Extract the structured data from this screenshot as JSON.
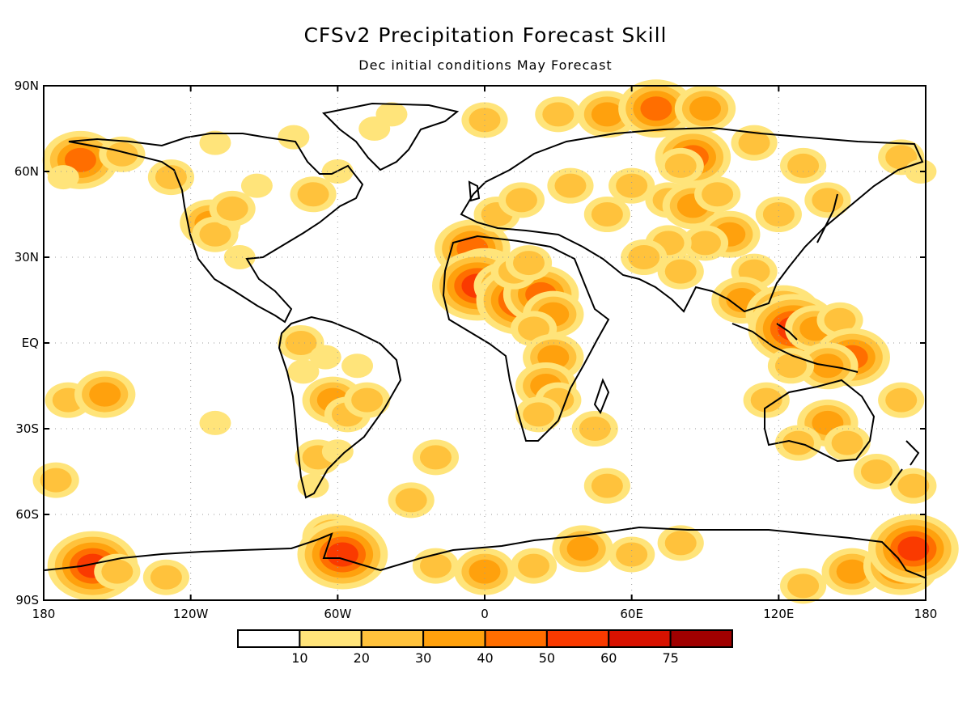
{
  "title": "CFSv2 Precipitation Forecast Skill",
  "subtitle": "Dec initial conditions   May Forecast",
  "map": {
    "projection": "equirectangular",
    "lon_range": [
      -180,
      180
    ],
    "lat_range": [
      -90,
      90
    ],
    "gridlines": "dotted",
    "lat_ticks": [
      {
        "value": 90,
        "label": "90N"
      },
      {
        "value": 60,
        "label": "60N"
      },
      {
        "value": 30,
        "label": "30N"
      },
      {
        "value": 0,
        "label": "EQ"
      },
      {
        "value": -30,
        "label": "30S"
      },
      {
        "value": -60,
        "label": "60S"
      },
      {
        "value": -90,
        "label": "90S"
      }
    ],
    "lon_ticks": [
      {
        "value": -180,
        "label": "180"
      },
      {
        "value": -120,
        "label": "120W"
      },
      {
        "value": -60,
        "label": "60W"
      },
      {
        "value": 0,
        "label": "0"
      },
      {
        "value": 60,
        "label": "60E"
      },
      {
        "value": 120,
        "label": "120E"
      },
      {
        "value": 180,
        "label": "180"
      }
    ]
  },
  "colorbar": {
    "colors": [
      "#ffffff",
      "#ffe47a",
      "#ffc23c",
      "#ffa10d",
      "#ff6e00",
      "#fa3a00",
      "#d81200",
      "#a00000"
    ],
    "labels": [
      "10",
      "20",
      "30",
      "40",
      "50",
      "60",
      "75"
    ]
  },
  "skill_regions": [
    {
      "lon": -168,
      "lat": 63,
      "level": 2
    },
    {
      "lon": -165,
      "lat": 64,
      "level": 4
    },
    {
      "lon": -148,
      "lat": 66,
      "level": 2
    },
    {
      "lon": -128,
      "lat": 58,
      "level": 2
    },
    {
      "lon": -112,
      "lat": 42,
      "level": 3
    },
    {
      "lon": -110,
      "lat": 38,
      "level": 2
    },
    {
      "lon": -103,
      "lat": 47,
      "level": 2
    },
    {
      "lon": -100,
      "lat": 30,
      "level": 1
    },
    {
      "lon": -93,
      "lat": 55,
      "level": 1
    },
    {
      "lon": -70,
      "lat": 52,
      "level": 2
    },
    {
      "lon": -60,
      "lat": 60,
      "level": 1
    },
    {
      "lon": -45,
      "lat": 75,
      "level": 1
    },
    {
      "lon": -38,
      "lat": 80,
      "level": 1
    },
    {
      "lon": -78,
      "lat": 72,
      "level": 1
    },
    {
      "lon": -110,
      "lat": 70,
      "level": 1
    },
    {
      "lon": -172,
      "lat": 58,
      "level": 1
    },
    {
      "lon": -75,
      "lat": 0,
      "level": 2
    },
    {
      "lon": -65,
      "lat": -5,
      "level": 1
    },
    {
      "lon": -52,
      "lat": -8,
      "level": 1
    },
    {
      "lon": -62,
      "lat": -20,
      "level": 3
    },
    {
      "lon": -56,
      "lat": -25,
      "level": 2
    },
    {
      "lon": -48,
      "lat": -20,
      "level": 2
    },
    {
      "lon": -68,
      "lat": -40,
      "level": 2
    },
    {
      "lon": -70,
      "lat": -50,
      "level": 1
    },
    {
      "lon": -74,
      "lat": -10,
      "level": 1
    },
    {
      "lon": -60,
      "lat": -38,
      "level": 1
    },
    {
      "lon": -5,
      "lat": 33,
      "level": 4
    },
    {
      "lon": 0,
      "lat": 23,
      "level": 4
    },
    {
      "lon": -3,
      "lat": 20,
      "level": 5
    },
    {
      "lon": 8,
      "lat": 20,
      "level": 3
    },
    {
      "lon": 15,
      "lat": 15,
      "level": 5
    },
    {
      "lon": 23,
      "lat": 17,
      "level": 4
    },
    {
      "lon": 12,
      "lat": 25,
      "level": 2
    },
    {
      "lon": 18,
      "lat": 28,
      "level": 2
    },
    {
      "lon": 28,
      "lat": 10,
      "level": 3
    },
    {
      "lon": 20,
      "lat": 5,
      "level": 2
    },
    {
      "lon": 28,
      "lat": -5,
      "level": 3
    },
    {
      "lon": 25,
      "lat": -15,
      "level": 3
    },
    {
      "lon": 30,
      "lat": -20,
      "level": 2
    },
    {
      "lon": 22,
      "lat": -25,
      "level": 2
    },
    {
      "lon": 45,
      "lat": -30,
      "level": 2
    },
    {
      "lon": 5,
      "lat": 45,
      "level": 2
    },
    {
      "lon": 15,
      "lat": 50,
      "level": 2
    },
    {
      "lon": 35,
      "lat": 55,
      "level": 2
    },
    {
      "lon": 50,
      "lat": 45,
      "level": 2
    },
    {
      "lon": 60,
      "lat": 55,
      "level": 2
    },
    {
      "lon": 75,
      "lat": 50,
      "level": 2
    },
    {
      "lon": 85,
      "lat": 48,
      "level": 3
    },
    {
      "lon": 95,
      "lat": 52,
      "level": 2
    },
    {
      "lon": 100,
      "lat": 38,
      "level": 3
    },
    {
      "lon": 90,
      "lat": 35,
      "level": 2
    },
    {
      "lon": 75,
      "lat": 35,
      "level": 2
    },
    {
      "lon": 65,
      "lat": 30,
      "level": 2
    },
    {
      "lon": 80,
      "lat": 25,
      "level": 2
    },
    {
      "lon": 85,
      "lat": 65,
      "level": 4
    },
    {
      "lon": 80,
      "lat": 62,
      "level": 2
    },
    {
      "lon": 110,
      "lat": 70,
      "level": 2
    },
    {
      "lon": 130,
      "lat": 62,
      "level": 2
    },
    {
      "lon": 140,
      "lat": 50,
      "level": 2
    },
    {
      "lon": 120,
      "lat": 45,
      "level": 2
    },
    {
      "lon": 110,
      "lat": 25,
      "level": 2
    },
    {
      "lon": 105,
      "lat": 15,
      "level": 3
    },
    {
      "lon": 122,
      "lat": 10,
      "level": 4
    },
    {
      "lon": 126,
      "lat": 5,
      "level": 5
    },
    {
      "lon": 135,
      "lat": 5,
      "level": 3
    },
    {
      "lon": 145,
      "lat": 8,
      "level": 2
    },
    {
      "lon": 150,
      "lat": -5,
      "level": 4
    },
    {
      "lon": 140,
      "lat": -8,
      "level": 3
    },
    {
      "lon": 125,
      "lat": -8,
      "level": 2
    },
    {
      "lon": 115,
      "lat": -20,
      "level": 2
    },
    {
      "lon": 140,
      "lat": -28,
      "level": 3
    },
    {
      "lon": 148,
      "lat": -35,
      "level": 2
    },
    {
      "lon": 128,
      "lat": -35,
      "level": 2
    },
    {
      "lon": 160,
      "lat": -45,
      "level": 2
    },
    {
      "lon": 175,
      "lat": -50,
      "level": 2
    },
    {
      "lon": 170,
      "lat": 65,
      "level": 2
    },
    {
      "lon": 178,
      "lat": 60,
      "level": 1
    },
    {
      "lon": 170,
      "lat": -20,
      "level": 2
    },
    {
      "lon": -170,
      "lat": -20,
      "level": 2
    },
    {
      "lon": -155,
      "lat": -18,
      "level": 3
    },
    {
      "lon": -175,
      "lat": -48,
      "level": 2
    },
    {
      "lon": -110,
      "lat": -28,
      "level": 1
    },
    {
      "lon": -20,
      "lat": -40,
      "level": 2
    },
    {
      "lon": -30,
      "lat": -55,
      "level": 2
    },
    {
      "lon": 50,
      "lat": -50,
      "level": 2
    },
    {
      "lon": 30,
      "lat": 80,
      "level": 2
    },
    {
      "lon": 50,
      "lat": 80,
      "level": 3
    },
    {
      "lon": 70,
      "lat": 82,
      "level": 4
    },
    {
      "lon": 90,
      "lat": 82,
      "level": 3
    },
    {
      "lon": 0,
      "lat": 78,
      "level": 2
    },
    {
      "lon": -160,
      "lat": -78,
      "level": 5
    },
    {
      "lon": -150,
      "lat": -80,
      "level": 2
    },
    {
      "lon": -130,
      "lat": -82,
      "level": 2
    },
    {
      "lon": -62,
      "lat": -68,
      "level": 3
    },
    {
      "lon": -58,
      "lat": -74,
      "level": 5
    },
    {
      "lon": -20,
      "lat": -78,
      "level": 2
    },
    {
      "lon": 0,
      "lat": -80,
      "level": 3
    },
    {
      "lon": 20,
      "lat": -78,
      "level": 2
    },
    {
      "lon": 40,
      "lat": -72,
      "level": 3
    },
    {
      "lon": 60,
      "lat": -74,
      "level": 2
    },
    {
      "lon": 80,
      "lat": -70,
      "level": 2
    },
    {
      "lon": 150,
      "lat": -80,
      "level": 3
    },
    {
      "lon": 170,
      "lat": -78,
      "level": 4
    },
    {
      "lon": 175,
      "lat": -72,
      "level": 5
    },
    {
      "lon": 130,
      "lat": -85,
      "level": 2
    }
  ]
}
